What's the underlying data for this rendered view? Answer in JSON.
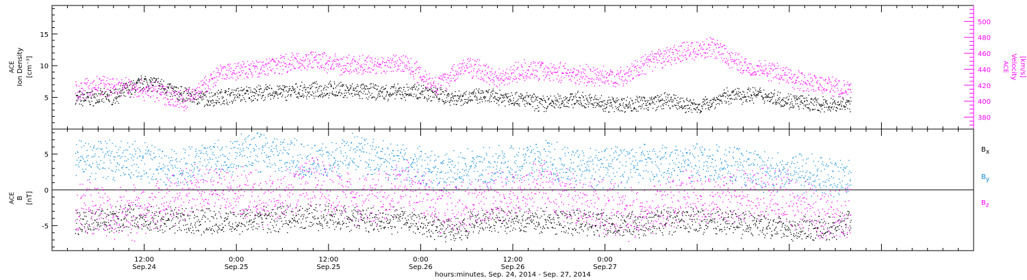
{
  "chart_data": [
    {
      "type": "scatter",
      "panel": "top",
      "ylabel_left": [
        "ACE",
        "Ion Density",
        "[cm⁻³]"
      ],
      "ylabel_right": [
        "ACE",
        "Velocity",
        "[km/s]"
      ],
      "ylim_left": [
        0,
        19.5
      ],
      "ylim_right": [
        365,
        520
      ],
      "yticks_left": [
        5,
        10,
        15
      ],
      "yticks_right": [
        380,
        400,
        420,
        440,
        460,
        480,
        500
      ],
      "colors": {
        "density": "#000000",
        "velocity": "#ff00ff"
      },
      "series": [
        {
          "name": "Ion Density",
          "axis": "left",
          "color": "#000000",
          "x_hours": [
            3,
            8,
            12,
            14,
            16,
            20,
            24,
            28,
            32,
            36,
            40,
            44,
            48,
            52,
            56,
            60,
            64,
            68,
            72,
            76,
            80,
            84,
            88,
            92,
            96,
            100,
            104
          ],
          "values": [
            4.8,
            5.2,
            7.5,
            7.0,
            5.8,
            4.8,
            5.5,
            5.8,
            6.0,
            6.3,
            6.0,
            5.8,
            6.0,
            5.0,
            5.2,
            5.0,
            4.0,
            4.8,
            4.0,
            4.0,
            4.5,
            3.5,
            5.3,
            5.5,
            4.5,
            3.8,
            4.0
          ]
        },
        {
          "name": "Velocity",
          "axis": "right",
          "color": "#ff00ff",
          "x_hours": [
            3,
            6,
            10,
            14,
            17,
            20,
            22,
            26,
            30,
            34,
            38,
            42,
            46,
            50,
            54,
            58,
            62,
            66,
            70,
            74,
            78,
            82,
            86,
            90,
            94,
            98,
            102,
            104
          ],
          "values": [
            412,
            420,
            418,
            412,
            400,
            420,
            435,
            440,
            448,
            452,
            445,
            446,
            448,
            420,
            445,
            430,
            440,
            437,
            432,
            430,
            450,
            462,
            468,
            444,
            438,
            425,
            418,
            412
          ]
        }
      ]
    },
    {
      "type": "scatter",
      "panel": "bottom",
      "ylabel": [
        "ACE",
        "B",
        "[nT]"
      ],
      "ylim": [
        -8.5,
        8.5
      ],
      "yticks": [
        -5,
        0,
        5
      ],
      "zero_line": true,
      "legend": [
        "Bₓ",
        "Bᵧ",
        "B_z"
      ],
      "legend_labels": {
        "bx": "B",
        "bx_sub": "x",
        "by": "B",
        "by_sub": "y",
        "bz": "B",
        "bz_sub": "z"
      },
      "legend_placement": "right",
      "colors": {
        "bx": "#000000",
        "by": "#0a8ad8",
        "bz": "#ff00ff"
      },
      "series": [
        {
          "name": "Bx",
          "color": "#000000",
          "x_hours": [
            3,
            10,
            16,
            22,
            28,
            34,
            40,
            46,
            52,
            58,
            64,
            70,
            76,
            82,
            88,
            94,
            100,
            104
          ],
          "values": [
            -4.5,
            -4.0,
            -4.2,
            -4.5,
            -4.0,
            -3.8,
            -4.0,
            -4.2,
            -5.5,
            -4.0,
            -4.2,
            -4.5,
            -4.8,
            -4.2,
            -4.5,
            -5.0,
            -5.5,
            -4.5
          ]
        },
        {
          "name": "By",
          "color": "#0a8ad8",
          "x_hours": [
            3,
            10,
            16,
            22,
            28,
            34,
            40,
            46,
            52,
            58,
            64,
            70,
            76,
            82,
            88,
            94,
            100,
            104
          ],
          "values": [
            4.5,
            4.0,
            3.0,
            4.5,
            5.5,
            4.0,
            5.0,
            3.5,
            2.5,
            3.5,
            4.0,
            3.0,
            3.5,
            4.0,
            3.5,
            2.5,
            2.0,
            2.0
          ]
        },
        {
          "name": "Bz",
          "color": "#ff00ff",
          "x_hours": [
            3,
            10,
            16,
            22,
            28,
            34,
            40,
            46,
            52,
            58,
            64,
            70,
            76,
            82,
            88,
            94,
            100,
            104
          ],
          "values": [
            -2.0,
            -3.5,
            -1.0,
            0.5,
            -1.5,
            1.5,
            -2.0,
            0.5,
            -3.0,
            -1.0,
            0.5,
            -2.0,
            -3.5,
            -1.0,
            -1.0,
            0.0,
            -3.5,
            -3.0
          ]
        }
      ]
    }
  ],
  "x_axis": {
    "x_range_hours": [
      0,
      120
    ],
    "ticks": [
      {
        "hour": 12,
        "time": "12:00",
        "date": "Sep.24"
      },
      {
        "hour": 24,
        "time": "0:00",
        "date": "Sep.25"
      },
      {
        "hour": 36,
        "time": "12:00",
        "date": "Sep.25"
      },
      {
        "hour": 48,
        "time": "0:00",
        "date": "Sep.26"
      },
      {
        "hour": 60,
        "time": "12:00",
        "date": "Sep.26"
      },
      {
        "hour": 72,
        "time": "0:00",
        "date": "Sep.27"
      }
    ],
    "label": "hours:minutes, Sep. 24, 2014 - Sep. 27, 2014"
  }
}
